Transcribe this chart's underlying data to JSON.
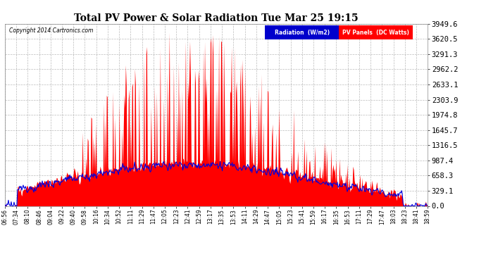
{
  "title": "Total PV Power & Solar Radiation Tue Mar 25 19:15",
  "copyright": "Copyright 2014 Cartronics.com",
  "legend_radiation": "Radiation  (W/m2)",
  "legend_pv": "PV Panels  (DC Watts)",
  "radiation_color": "#0000dd",
  "pv_color": "#ff0000",
  "legend_radiation_bg": "#0000cc",
  "legend_pv_bg": "#ff0000",
  "background_color": "#ffffff",
  "plot_bg_color": "#ffffff",
  "title_color": "#000000",
  "copyright_color": "#000000",
  "tick_color": "#000000",
  "grid_color": "#aaaaaa",
  "ymax": 3949.6,
  "ymin": 0.0,
  "yticks": [
    0.0,
    329.1,
    658.3,
    987.4,
    1316.5,
    1645.7,
    1974.8,
    2303.9,
    2633.1,
    2962.2,
    3291.3,
    3620.5,
    3949.6
  ],
  "ytick_labels": [
    "0.0",
    "329.1",
    "658.3",
    "987.4",
    "1316.5",
    "1645.7",
    "1974.8",
    "2303.9",
    "2633.1",
    "2962.2",
    "3291.3",
    "3620.5",
    "3949.6"
  ],
  "xtick_labels": [
    "06:56",
    "07:34",
    "08:10",
    "08:46",
    "09:04",
    "09:22",
    "09:40",
    "09:58",
    "10:16",
    "10:34",
    "10:52",
    "11:11",
    "11:29",
    "11:47",
    "12:05",
    "12:23",
    "12:41",
    "12:59",
    "13:17",
    "13:35",
    "13:53",
    "14:11",
    "14:29",
    "14:47",
    "15:05",
    "15:23",
    "15:41",
    "15:59",
    "16:17",
    "16:35",
    "16:53",
    "17:11",
    "17:29",
    "17:47",
    "18:03",
    "18:23",
    "18:41",
    "18:59"
  ],
  "n_points": 600
}
